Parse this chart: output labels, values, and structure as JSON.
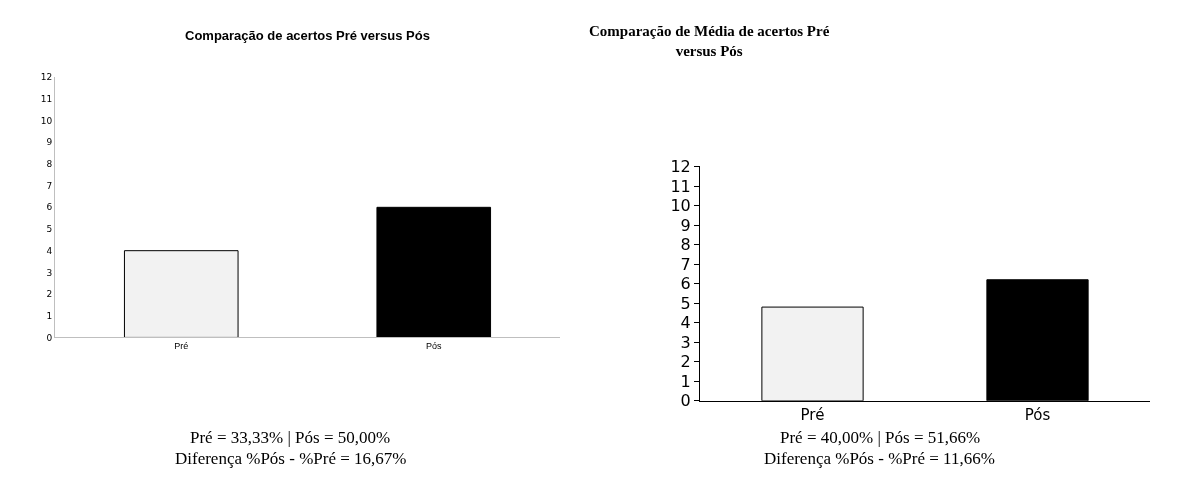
{
  "chart_data": [
    {
      "type": "bar",
      "title": "Comparação de acertos Pré versus Pós",
      "categories": [
        "Pré",
        "Pós"
      ],
      "values": [
        4,
        6
      ],
      "colors": [
        "#f2f2f2",
        "#000000"
      ],
      "ylim": [
        0,
        12
      ],
      "yticks": [
        0,
        1,
        2,
        3,
        4,
        5,
        6,
        7,
        8,
        9,
        10,
        11,
        12
      ],
      "annotations": [
        "Pré = 33,33% | Pós = 50,00%",
        "Diferença %Pós - %Pré = 16,67%"
      ]
    },
    {
      "type": "bar",
      "title": "Comparação de Média de acertos Pré\nversus Pós",
      "categories": [
        "Pré",
        "Pós"
      ],
      "values": [
        4.8,
        6.2
      ],
      "colors": [
        "#f2f2f2",
        "#000000"
      ],
      "ylim": [
        0,
        12
      ],
      "yticks": [
        0,
        1,
        2,
        3,
        4,
        5,
        6,
        7,
        8,
        9,
        10,
        11,
        12
      ],
      "annotations": [
        "Pré = 40,00% | Pós = 51,66%",
        "Diferença %Pós - %Pré = 11,66%"
      ]
    }
  ]
}
